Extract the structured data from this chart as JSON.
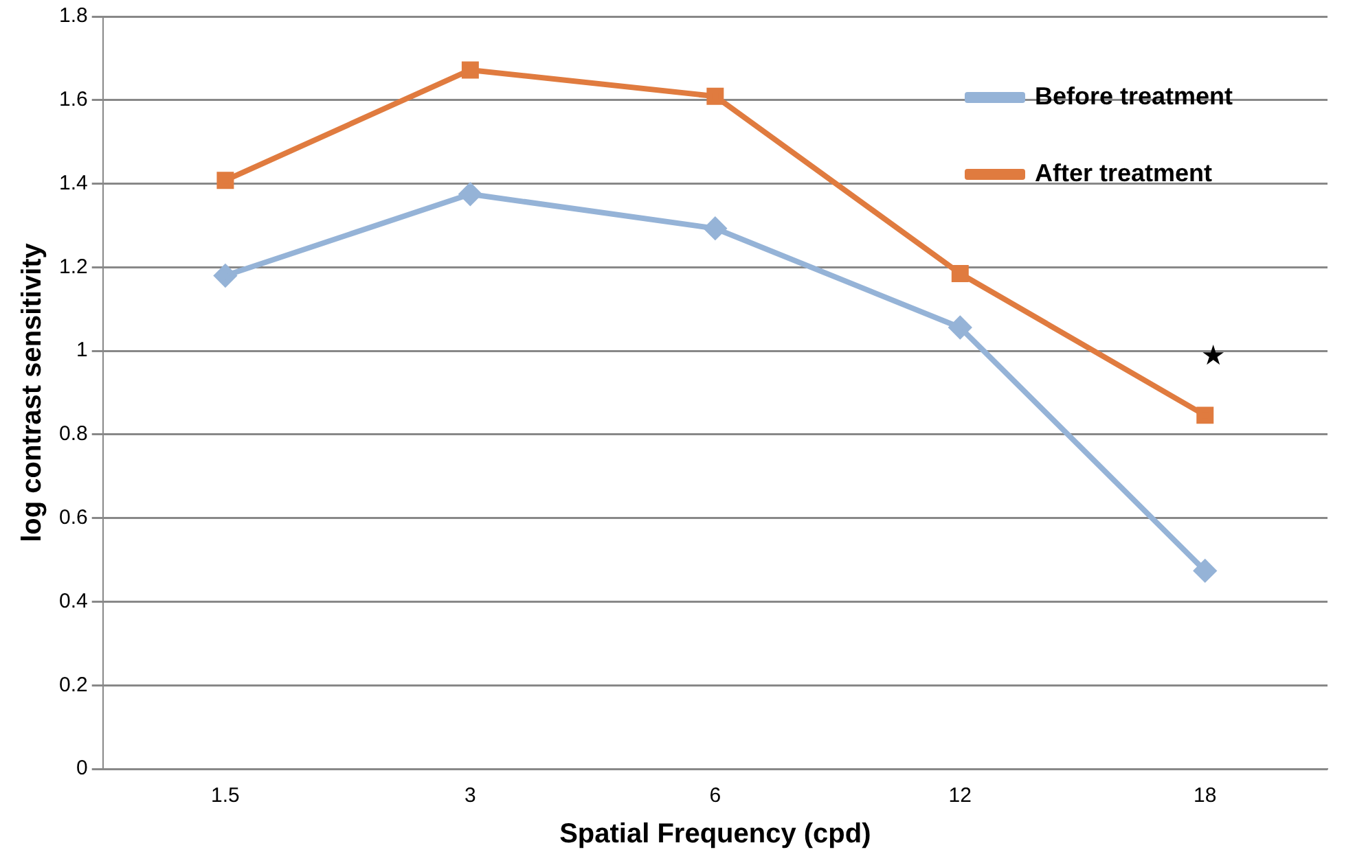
{
  "chart_data": {
    "type": "line",
    "xlabel": "Spatial Frequency (cpd)",
    "ylabel": "log contrast sensitivity",
    "categories": [
      "1.5",
      "3",
      "6",
      "12",
      "18"
    ],
    "series": [
      {
        "name": "Before treatment",
        "color": "#95b3d7",
        "marker": "diamond",
        "values": [
          1.18,
          1.375,
          1.293,
          1.056,
          0.474
        ]
      },
      {
        "name": "After treatment",
        "color": "#e07b3f",
        "marker": "square",
        "values": [
          1.408,
          1.672,
          1.609,
          1.185,
          0.846
        ]
      }
    ],
    "ylim": [
      0,
      1.8
    ],
    "yticks": [
      0,
      0.2,
      0.4,
      0.6,
      0.8,
      1,
      1.2,
      1.4,
      1.6,
      1.8
    ],
    "grid": "y",
    "legend": "top right",
    "annotations": [
      {
        "text": "★",
        "x": "18",
        "y": 0.846
      }
    ]
  }
}
